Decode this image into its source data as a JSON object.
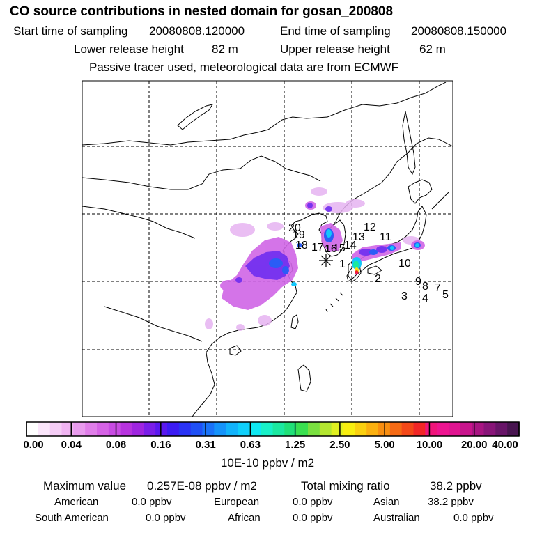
{
  "header": {
    "title": "CO  source contributions in nested domain for gosan_200808",
    "start_label": "Start time of sampling",
    "start_value": "20080808.120000",
    "end_label": "End time of sampling",
    "end_value": "20080808.150000",
    "lower_label": "Lower release height",
    "lower_value": "82 m",
    "upper_label": "Upper release height",
    "upper_value": "62 m",
    "note": "Passive tracer used, meteorological data are from ECMWF"
  },
  "map": {
    "site_labels": [
      "1",
      "2",
      "3",
      "4",
      "5",
      "7",
      "8",
      "9",
      "10",
      "11",
      "12",
      "13",
      "14",
      "15",
      "16",
      "17",
      "18",
      "19",
      "20"
    ]
  },
  "colorbar": {
    "colors": [
      "#ffffff",
      "#fbe6fb",
      "#f5cdf6",
      "#f0b4f2",
      "#e99bee",
      "#e07ee9",
      "#d663e6",
      "#c84be3",
      "#b733df",
      "#9f25e0",
      "#7a1ee8",
      "#5a18ef",
      "#3c1cf4",
      "#2a33f5",
      "#2050f6",
      "#1a72f8",
      "#1593fa",
      "#12b3fb",
      "#10d0fb",
      "#0fe8f2",
      "#18f0c8",
      "#1be8a0",
      "#20e078",
      "#3ae050",
      "#7ae040",
      "#b4e630",
      "#e0f020",
      "#f8ee10",
      "#fad010",
      "#fab010",
      "#f88e10",
      "#f66a14",
      "#f44818",
      "#f22626",
      "#f0147a",
      "#ee1490",
      "#e01490",
      "#c8148c",
      "#a81482",
      "#881478",
      "#681468",
      "#481450"
    ],
    "labels": [
      "0.00",
      "0.04",
      "0.08",
      "0.16",
      "0.31",
      "0.63",
      "1.25",
      "2.50",
      "5.00",
      "10.00",
      "20.00",
      "40.00"
    ],
    "unit": "10E-10 ppbv / m2"
  },
  "summary": {
    "max_label": "Maximum value",
    "max_value": "0.257E-08 ppbv / m2",
    "total_label": "Total mixing ratio",
    "total_value": "38.2 ppbv",
    "regions": [
      {
        "name": "American",
        "value": "0.0 ppbv"
      },
      {
        "name": "European",
        "value": "0.0 ppbv"
      },
      {
        "name": "Asian",
        "value": "38.2 ppbv"
      },
      {
        "name": "South American",
        "value": "0.0 ppbv"
      },
      {
        "name": "African",
        "value": "0.0 ppbv"
      },
      {
        "name": "Australian",
        "value": "0.0 ppbv"
      }
    ]
  }
}
